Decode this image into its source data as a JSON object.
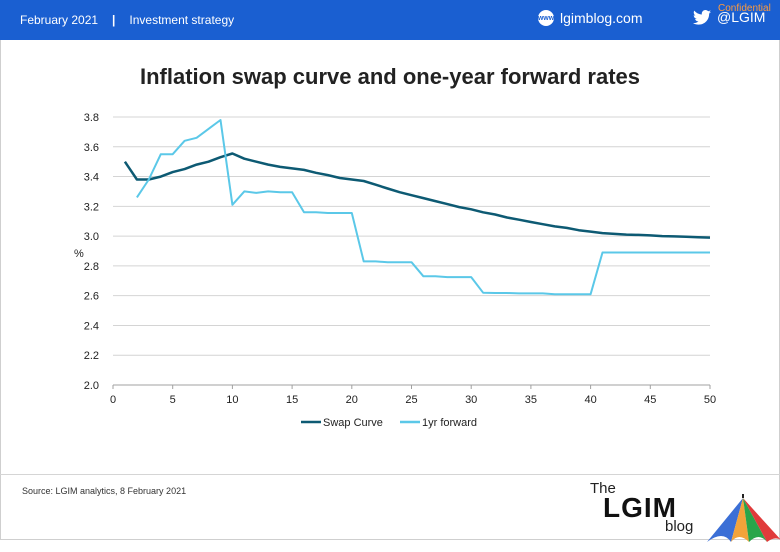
{
  "header": {
    "date": "February 2021",
    "separator": "|",
    "section": "Investment strategy",
    "blog": "lgimblog.com",
    "blog_icon": "www",
    "twitter": "@LGIM",
    "confidential": "Confidential"
  },
  "footer": {
    "source": "Source: LGIM analytics, 8 February 2021"
  },
  "logo": {
    "the": "The",
    "main": "LGIM",
    "blog": "blog"
  },
  "colors": {
    "header_bg": "#1a5fd1",
    "swap": "#0d5a73",
    "forward": "#5bc8e8"
  },
  "chart_data": {
    "type": "line",
    "title": "Inflation swap curve and one-year forward rates",
    "ylabel": "%",
    "xlabel": "",
    "xlim": [
      0,
      50
    ],
    "ylim": [
      2.0,
      3.8
    ],
    "xticks": [
      0,
      5,
      10,
      15,
      20,
      25,
      30,
      35,
      40,
      45,
      50
    ],
    "yticks": [
      2.0,
      2.2,
      2.4,
      2.6,
      2.8,
      3.0,
      3.2,
      3.4,
      3.6,
      3.8
    ],
    "ytick_labels": [
      "2.0",
      "2.2",
      "2.4",
      "2.6",
      "2.8",
      "3.0",
      "3.2",
      "3.4",
      "3.6",
      "3.8"
    ],
    "grid": "horizontal",
    "legend": "bottom",
    "series": [
      {
        "name": "Swap Curve",
        "color": "#0d5a73",
        "x": [
          1,
          2,
          3,
          4,
          5,
          6,
          7,
          8,
          9,
          10,
          11,
          12,
          13,
          14,
          15,
          16,
          17,
          18,
          19,
          20,
          21,
          22,
          23,
          24,
          25,
          26,
          27,
          28,
          29,
          30,
          31,
          32,
          33,
          34,
          35,
          36,
          37,
          38,
          39,
          40,
          41,
          42,
          43,
          44,
          45,
          46,
          47,
          48,
          49,
          50
        ],
        "y": [
          3.5,
          3.38,
          3.38,
          3.4,
          3.43,
          3.45,
          3.48,
          3.5,
          3.53,
          3.555,
          3.52,
          3.5,
          3.48,
          3.465,
          3.455,
          3.445,
          3.425,
          3.41,
          3.39,
          3.38,
          3.37,
          3.345,
          3.32,
          3.295,
          3.275,
          3.255,
          3.235,
          3.215,
          3.195,
          3.18,
          3.16,
          3.145,
          3.125,
          3.11,
          3.095,
          3.08,
          3.065,
          3.055,
          3.04,
          3.03,
          3.02,
          3.015,
          3.01,
          3.008,
          3.005,
          3.0,
          2.998,
          2.996,
          2.993,
          2.99
        ]
      },
      {
        "name": "1yr forward",
        "color": "#5bc8e8",
        "x": [
          2,
          3,
          4,
          5,
          6,
          7,
          8,
          9,
          10,
          11,
          12,
          13,
          14,
          15,
          16,
          17,
          18,
          19,
          20,
          21,
          22,
          23,
          24,
          25,
          26,
          27,
          28,
          29,
          30,
          31,
          32,
          33,
          34,
          35,
          36,
          37,
          38,
          39,
          40,
          41,
          42,
          43,
          44,
          45,
          46,
          47,
          48,
          49,
          50
        ],
        "y": [
          3.26,
          3.38,
          3.55,
          3.55,
          3.64,
          3.66,
          3.72,
          3.78,
          3.21,
          3.3,
          3.29,
          3.3,
          3.295,
          3.295,
          3.16,
          3.16,
          3.155,
          3.155,
          3.155,
          2.83,
          2.83,
          2.825,
          2.825,
          2.825,
          2.73,
          2.73,
          2.725,
          2.725,
          2.725,
          2.62,
          2.618,
          2.618,
          2.615,
          2.615,
          2.615,
          2.61,
          2.61,
          2.61,
          2.61,
          2.89,
          2.89,
          2.89,
          2.89,
          2.89,
          2.89,
          2.89,
          2.89,
          2.89,
          2.89
        ]
      }
    ]
  }
}
